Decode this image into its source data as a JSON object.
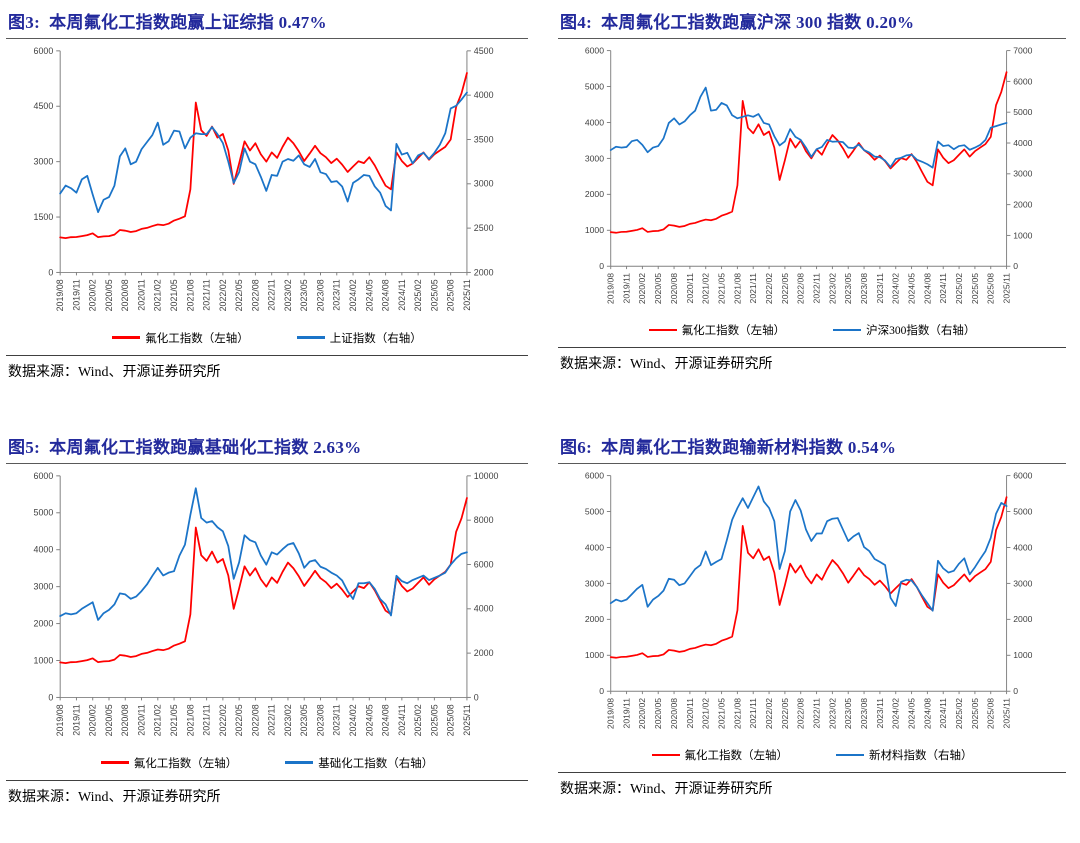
{
  "source_note": "数据来源：Wind、开源证券研究所",
  "style": {
    "title_color": "#232a9c",
    "axis_color": "#808080",
    "tick_text_color": "#404040",
    "red_line_color": "#FF0000",
    "blue_line_color": "#1B74C8",
    "background": "#ffffff"
  },
  "x_labels": [
    "2019/08",
    "2019/11",
    "2020/02",
    "2020/05",
    "2020/08",
    "2020/11",
    "2021/02",
    "2021/05",
    "2021/08",
    "2021/11",
    "2022/02",
    "2022/05",
    "2022/08",
    "2022/11",
    "2023/02",
    "2023/05",
    "2023/08",
    "2023/11",
    "2024/02",
    "2024/05",
    "2024/08",
    "2024/11",
    "2025/02",
    "2025/05",
    "2025/08",
    "2025/11"
  ],
  "fluoro_values": [
    950,
    930,
    955,
    960,
    985,
    1010,
    1060,
    955,
    975,
    985,
    1025,
    1150,
    1130,
    1095,
    1120,
    1180,
    1205,
    1255,
    1300,
    1280,
    1320,
    1405,
    1455,
    1520,
    2250,
    4600,
    3850,
    3700,
    3950,
    3650,
    3750,
    3300,
    2400,
    2950,
    3550,
    3300,
    3500,
    3200,
    3000,
    3250,
    3100,
    3400,
    3650,
    3500,
    3280,
    3020,
    3220,
    3430,
    3230,
    3120,
    2960,
    3080,
    2920,
    2720,
    2870,
    3010,
    2960,
    3120,
    2900,
    2620,
    2350,
    2250,
    3250,
    3020,
    2870,
    2950,
    3100,
    3250,
    3050,
    3200,
    3300,
    3400,
    3600,
    4480,
    4850,
    5400
  ],
  "chart_data": [
    {
      "type": "line",
      "title": "图3:  本周氟化工指数跑赢上证综指 0.47%",
      "x_tick_labels_ref": "x_labels",
      "grid": false,
      "legend_position": "bottom",
      "left_axis": {
        "min": 0,
        "max": 6000,
        "ticks": [
          0,
          1500,
          3000,
          4500,
          6000
        ]
      },
      "right_axis": {
        "min": 2000,
        "max": 4500,
        "ticks": [
          2000,
          2500,
          3000,
          3500,
          4000,
          4500
        ]
      },
      "series": [
        {
          "name": "氟化工指数（左轴）",
          "color": "#FF0000",
          "axis": "left",
          "values_ref": "fluoro_values"
        },
        {
          "name": "上证指数（右轴）",
          "color": "#1B74C8",
          "axis": "right",
          "values": [
            2890,
            2980,
            2950,
            2900,
            3050,
            3090,
            2880,
            2680,
            2820,
            2850,
            2980,
            3310,
            3400,
            3220,
            3250,
            3390,
            3470,
            3550,
            3690,
            3440,
            3480,
            3600,
            3590,
            3400,
            3520,
            3570,
            3560,
            3560,
            3640,
            3560,
            3460,
            3250,
            3010,
            3130,
            3400,
            3250,
            3220,
            3080,
            2920,
            3100,
            3090,
            3250,
            3280,
            3260,
            3320,
            3220,
            3190,
            3280,
            3130,
            3110,
            3020,
            3030,
            2970,
            2800,
            3010,
            3050,
            3100,
            3090,
            2970,
            2900,
            2750,
            2700,
            3450,
            3330,
            3350,
            3230,
            3320,
            3350,
            3280,
            3350,
            3440,
            3570,
            3850,
            3880,
            3950,
            4030
          ]
        }
      ]
    },
    {
      "type": "line",
      "title": "图4:  本周氟化工指数跑赢沪深 300 指数 0.20%",
      "x_tick_labels_ref": "x_labels",
      "grid": false,
      "legend_position": "bottom",
      "left_axis": {
        "min": 0,
        "max": 6000,
        "ticks": [
          0,
          1000,
          2000,
          3000,
          4000,
          5000,
          6000
        ]
      },
      "right_axis": {
        "min": 0,
        "max": 7000,
        "ticks": [
          0,
          1000,
          2000,
          3000,
          4000,
          5000,
          6000,
          7000
        ]
      },
      "series": [
        {
          "name": "氟化工指数（左轴）",
          "color": "#FF0000",
          "axis": "left",
          "values_ref": "fluoro_values"
        },
        {
          "name": "沪深300指数（右轴）",
          "color": "#1B74C8",
          "axis": "right",
          "values": [
            3770,
            3880,
            3850,
            3870,
            4060,
            4100,
            3940,
            3700,
            3850,
            3900,
            4150,
            4650,
            4800,
            4600,
            4700,
            4900,
            5050,
            5500,
            5800,
            5050,
            5080,
            5300,
            5220,
            4900,
            4800,
            4850,
            4900,
            4850,
            4940,
            4650,
            4600,
            4220,
            3920,
            4050,
            4450,
            4200,
            4100,
            3850,
            3550,
            3800,
            3870,
            4100,
            4040,
            4050,
            4030,
            3850,
            3840,
            3950,
            3770,
            3690,
            3560,
            3540,
            3430,
            3220,
            3480,
            3520,
            3600,
            3620,
            3460,
            3390,
            3310,
            3200,
            4050,
            3900,
            3930,
            3800,
            3900,
            3930,
            3780,
            3850,
            3940,
            4100,
            4500,
            4550,
            4600,
            4650
          ]
        }
      ]
    },
    {
      "type": "line",
      "title": "图5:  本周氟化工指数跑赢基础化工指数 2.63%",
      "x_tick_labels_ref": "x_labels",
      "grid": false,
      "legend_position": "bottom",
      "left_axis": {
        "min": 0,
        "max": 6000,
        "ticks": [
          0,
          1000,
          2000,
          3000,
          4000,
          5000,
          6000
        ]
      },
      "right_axis": {
        "min": 0,
        "max": 10000,
        "ticks": [
          0,
          2000,
          4000,
          6000,
          8000,
          10000
        ]
      },
      "series": [
        {
          "name": "氟化工指数（左轴）",
          "color": "#FF0000",
          "axis": "left",
          "values_ref": "fluoro_values"
        },
        {
          "name": "基础化工指数（右轴）",
          "color": "#1B74C8",
          "axis": "right",
          "values": [
            3670,
            3800,
            3750,
            3800,
            4000,
            4150,
            4300,
            3500,
            3800,
            3950,
            4200,
            4700,
            4650,
            4450,
            4550,
            4800,
            5100,
            5490,
            5850,
            5500,
            5630,
            5700,
            6400,
            6900,
            8240,
            9440,
            8100,
            7890,
            7960,
            7680,
            7500,
            6830,
            5350,
            6100,
            7320,
            7100,
            7000,
            6410,
            5990,
            6550,
            6450,
            6690,
            6900,
            6970,
            6500,
            5850,
            6130,
            6200,
            5900,
            5800,
            5630,
            5500,
            5280,
            4800,
            4440,
            5150,
            5150,
            5200,
            4900,
            4440,
            4200,
            3700,
            5490,
            5250,
            5150,
            5300,
            5400,
            5500,
            5300,
            5400,
            5500,
            5630,
            5990,
            6270,
            6480,
            6550
          ]
        }
      ]
    },
    {
      "type": "line",
      "title": "图6:  本周氟化工指数跑输新材料指数 0.54%",
      "x_tick_labels_ref": "x_labels",
      "grid": false,
      "legend_position": "bottom",
      "left_axis": {
        "min": 0,
        "max": 6000,
        "ticks": [
          0,
          1000,
          2000,
          3000,
          4000,
          5000,
          6000
        ]
      },
      "right_axis": {
        "min": 0,
        "max": 6000,
        "ticks": [
          0,
          1000,
          2000,
          3000,
          4000,
          5000,
          6000
        ]
      },
      "series": [
        {
          "name": "氟化工指数（左轴）",
          "color": "#FF0000",
          "axis": "left",
          "values_ref": "fluoro_values"
        },
        {
          "name": "新材料指数（右轴）",
          "color": "#1B74C8",
          "axis": "right",
          "values": [
            2450,
            2550,
            2500,
            2550,
            2700,
            2850,
            2960,
            2350,
            2550,
            2650,
            2800,
            3130,
            3100,
            2950,
            3000,
            3200,
            3400,
            3510,
            3890,
            3510,
            3600,
            3680,
            4200,
            4770,
            5100,
            5370,
            5100,
            5400,
            5700,
            5280,
            5100,
            4730,
            3400,
            3900,
            5000,
            5320,
            5030,
            4500,
            4180,
            4390,
            4390,
            4730,
            4800,
            4820,
            4500,
            4180,
            4310,
            4400,
            4010,
            3900,
            3680,
            3600,
            3510,
            2600,
            2370,
            3040,
            3100,
            3080,
            2900,
            2660,
            2450,
            2240,
            3630,
            3420,
            3300,
            3350,
            3550,
            3700,
            3250,
            3450,
            3680,
            3900,
            4270,
            4940,
            5240,
            5150
          ]
        }
      ]
    }
  ]
}
